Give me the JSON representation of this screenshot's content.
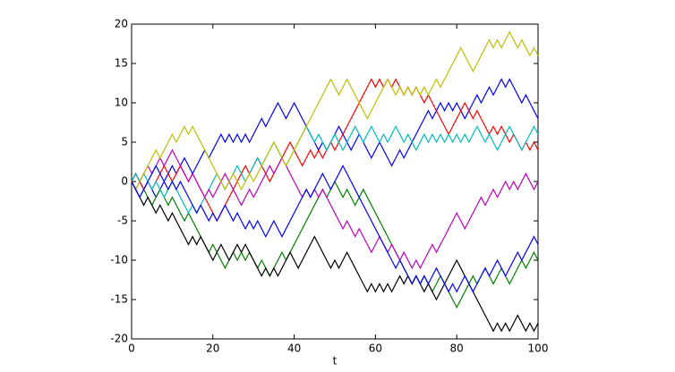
{
  "chart_data": {
    "type": "line",
    "xlabel": "t",
    "x": [
      0,
      1,
      2,
      3,
      4,
      5,
      6,
      7,
      8,
      9,
      10,
      11,
      12,
      13,
      14,
      15,
      16,
      17,
      18,
      19,
      20,
      21,
      22,
      23,
      24,
      25,
      26,
      27,
      28,
      29,
      30,
      31,
      32,
      33,
      34,
      35,
      36,
      37,
      38,
      39,
      40,
      41,
      42,
      43,
      44,
      45,
      46,
      47,
      48,
      49,
      50,
      51,
      52,
      53,
      54,
      55,
      56,
      57,
      58,
      59,
      60,
      61,
      62,
      63,
      64,
      65,
      66,
      67,
      68,
      69,
      70,
      71,
      72,
      73,
      74,
      75,
      76,
      77,
      78,
      79,
      80,
      81,
      82,
      83,
      84,
      85,
      86,
      87,
      88,
      89,
      90,
      91,
      92,
      93,
      94,
      95,
      96,
      97,
      98,
      99,
      100
    ],
    "series": [
      {
        "color": "#0000ff",
        "values": [
          0,
          1,
          0,
          -1,
          0,
          -1,
          -2,
          -1,
          0,
          1,
          2,
          1,
          2,
          3,
          2,
          1,
          2,
          3,
          4,
          3,
          4,
          5,
          6,
          5,
          6,
          5,
          6,
          5,
          6,
          5,
          6,
          7,
          8,
          7,
          8,
          9,
          10,
          9,
          8,
          9,
          10,
          9,
          8,
          7,
          6,
          5,
          4,
          5,
          4,
          5,
          6,
          7,
          6,
          5,
          4,
          5,
          6,
          5,
          4,
          3,
          4,
          5,
          4,
          3,
          2,
          3,
          4,
          3,
          4,
          5,
          6,
          7,
          8,
          9,
          8,
          9,
          10,
          9,
          10,
          9,
          10,
          9,
          8,
          9,
          10,
          11,
          10,
          11,
          12,
          11,
          12,
          13,
          12,
          13,
          12,
          11,
          10,
          11,
          10,
          9,
          8
        ]
      },
      {
        "color": "#008000",
        "values": [
          0,
          -1,
          -2,
          -1,
          -2,
          -3,
          -2,
          -1,
          -2,
          -3,
          -2,
          -3,
          -4,
          -5,
          -4,
          -5,
          -6,
          -7,
          -8,
          -9,
          -8,
          -9,
          -10,
          -11,
          -10,
          -9,
          -10,
          -9,
          -10,
          -9,
          -10,
          -11,
          -10,
          -11,
          -12,
          -11,
          -10,
          -9,
          -10,
          -9,
          -8,
          -7,
          -6,
          -5,
          -4,
          -3,
          -2,
          -1,
          -2,
          -1,
          0,
          -1,
          -2,
          -1,
          -2,
          -3,
          -2,
          -1,
          -2,
          -3,
          -4,
          -5,
          -6,
          -7,
          -8,
          -9,
          -10,
          -11,
          -12,
          -13,
          -12,
          -13,
          -12,
          -13,
          -14,
          -13,
          -12,
          -13,
          -14,
          -15,
          -16,
          -15,
          -14,
          -13,
          -12,
          -13,
          -12,
          -11,
          -12,
          -13,
          -12,
          -11,
          -12,
          -13,
          -12,
          -11,
          -10,
          -11,
          -10,
          -9,
          -10
        ]
      },
      {
        "color": "#ff0000",
        "values": [
          0,
          1,
          0,
          -1,
          0,
          -1,
          0,
          1,
          2,
          1,
          0,
          1,
          2,
          1,
          0,
          1,
          0,
          -1,
          -2,
          -3,
          -4,
          -5,
          -4,
          -3,
          -2,
          -1,
          0,
          1,
          2,
          1,
          2,
          3,
          2,
          1,
          0,
          1,
          2,
          3,
          4,
          5,
          4,
          3,
          2,
          3,
          4,
          3,
          4,
          3,
          4,
          5,
          4,
          5,
          6,
          7,
          8,
          9,
          10,
          11,
          12,
          13,
          12,
          13,
          12,
          13,
          12,
          13,
          12,
          11,
          12,
          11,
          12,
          11,
          10,
          11,
          10,
          9,
          8,
          7,
          6,
          7,
          8,
          9,
          10,
          9,
          8,
          9,
          8,
          7,
          6,
          7,
          6,
          7,
          6,
          5,
          6,
          5,
          4,
          5,
          4,
          5,
          4
        ]
      },
      {
        "color": "#00bfbf",
        "values": [
          0,
          1,
          0,
          1,
          0,
          -1,
          0,
          -1,
          -2,
          -1,
          0,
          -1,
          -2,
          -3,
          -4,
          -3,
          -4,
          -3,
          -2,
          -1,
          0,
          1,
          0,
          -1,
          0,
          1,
          2,
          1,
          0,
          1,
          2,
          3,
          2,
          3,
          4,
          5,
          4,
          3,
          2,
          3,
          4,
          5,
          6,
          7,
          6,
          5,
          6,
          5,
          4,
          5,
          6,
          5,
          4,
          5,
          6,
          7,
          6,
          5,
          6,
          7,
          6,
          5,
          6,
          5,
          6,
          7,
          6,
          5,
          6,
          5,
          4,
          5,
          6,
          5,
          6,
          5,
          6,
          5,
          6,
          5,
          6,
          5,
          6,
          5,
          6,
          7,
          6,
          5,
          6,
          5,
          4,
          5,
          6,
          7,
          6,
          5,
          4,
          5,
          6,
          7,
          6
        ]
      },
      {
        "color": "#bf00bf",
        "values": [
          0,
          -1,
          0,
          1,
          2,
          1,
          2,
          3,
          2,
          3,
          4,
          3,
          2,
          1,
          0,
          1,
          0,
          -1,
          -2,
          -1,
          -2,
          -1,
          0,
          1,
          0,
          -1,
          -2,
          -3,
          -2,
          -1,
          -2,
          -1,
          0,
          1,
          2,
          1,
          2,
          3,
          2,
          1,
          0,
          -1,
          -2,
          -1,
          -2,
          -1,
          -2,
          -1,
          -2,
          -3,
          -4,
          -5,
          -6,
          -5,
          -6,
          -7,
          -6,
          -7,
          -8,
          -9,
          -8,
          -7,
          -8,
          -9,
          -8,
          -9,
          -10,
          -9,
          -10,
          -11,
          -10,
          -11,
          -10,
          -9,
          -8,
          -9,
          -8,
          -7,
          -6,
          -5,
          -4,
          -5,
          -6,
          -5,
          -4,
          -3,
          -2,
          -3,
          -2,
          -1,
          -2,
          -1,
          0,
          -1,
          0,
          -1,
          0,
          1,
          0,
          -1,
          0
        ]
      },
      {
        "color": "#bfbf00",
        "values": [
          0,
          -1,
          0,
          1,
          2,
          3,
          4,
          3,
          4,
          5,
          6,
          5,
          6,
          7,
          6,
          7,
          6,
          5,
          4,
          3,
          2,
          1,
          0,
          -1,
          0,
          1,
          0,
          -1,
          0,
          1,
          0,
          1,
          2,
          3,
          4,
          5,
          4,
          3,
          2,
          3,
          4,
          5,
          6,
          7,
          8,
          9,
          10,
          11,
          12,
          13,
          12,
          11,
          12,
          13,
          12,
          11,
          10,
          9,
          8,
          9,
          10,
          11,
          12,
          13,
          12,
          11,
          12,
          11,
          12,
          11,
          12,
          11,
          12,
          11,
          12,
          13,
          12,
          13,
          14,
          15,
          16,
          17,
          16,
          15,
          14,
          15,
          16,
          17,
          18,
          17,
          18,
          17,
          18,
          19,
          18,
          17,
          18,
          17,
          16,
          17,
          16
        ]
      },
      {
        "color": "#000000",
        "values": [
          0,
          -1,
          -2,
          -3,
          -2,
          -3,
          -4,
          -3,
          -4,
          -5,
          -4,
          -5,
          -6,
          -7,
          -8,
          -7,
          -8,
          -7,
          -8,
          -9,
          -10,
          -9,
          -8,
          -9,
          -10,
          -9,
          -8,
          -9,
          -8,
          -9,
          -10,
          -11,
          -12,
          -11,
          -12,
          -11,
          -12,
          -11,
          -10,
          -9,
          -10,
          -11,
          -10,
          -9,
          -8,
          -7,
          -8,
          -9,
          -10,
          -11,
          -10,
          -11,
          -10,
          -9,
          -10,
          -11,
          -12,
          -13,
          -14,
          -13,
          -14,
          -13,
          -14,
          -13,
          -14,
          -13,
          -12,
          -13,
          -12,
          -13,
          -12,
          -13,
          -14,
          -13,
          -14,
          -15,
          -14,
          -13,
          -12,
          -11,
          -10,
          -11,
          -12,
          -13,
          -14,
          -15,
          -16,
          -17,
          -18,
          -19,
          -18,
          -19,
          -18,
          -19,
          -18,
          -17,
          -18,
          -19,
          -18,
          -19,
          -18
        ]
      },
      {
        "color": "#0000ff",
        "values": [
          0,
          -1,
          -2,
          -1,
          0,
          1,
          2,
          1,
          0,
          -1,
          0,
          -1,
          0,
          -1,
          -2,
          -3,
          -4,
          -3,
          -4,
          -5,
          -4,
          -5,
          -4,
          -3,
          -4,
          -5,
          -4,
          -5,
          -6,
          -5,
          -6,
          -5,
          -6,
          -7,
          -6,
          -5,
          -6,
          -7,
          -6,
          -5,
          -4,
          -3,
          -2,
          -1,
          -2,
          -1,
          0,
          1,
          0,
          -1,
          0,
          1,
          2,
          1,
          0,
          -1,
          -2,
          -3,
          -4,
          -5,
          -6,
          -7,
          -8,
          -9,
          -10,
          -11,
          -10,
          -11,
          -12,
          -13,
          -12,
          -13,
          -12,
          -13,
          -12,
          -11,
          -12,
          -13,
          -14,
          -13,
          -14,
          -13,
          -12,
          -13,
          -14,
          -13,
          -12,
          -11,
          -12,
          -11,
          -10,
          -11,
          -12,
          -11,
          -10,
          -9,
          -10,
          -9,
          -8,
          -7,
          -8
        ]
      }
    ],
    "xlim": [
      0,
      100
    ],
    "xticks": [
      0,
      20,
      40,
      60,
      80,
      100
    ],
    "ylim": [
      -20,
      20
    ],
    "yticks": [
      -20,
      -15,
      -10,
      -5,
      0,
      5,
      10,
      15,
      20
    ]
  }
}
